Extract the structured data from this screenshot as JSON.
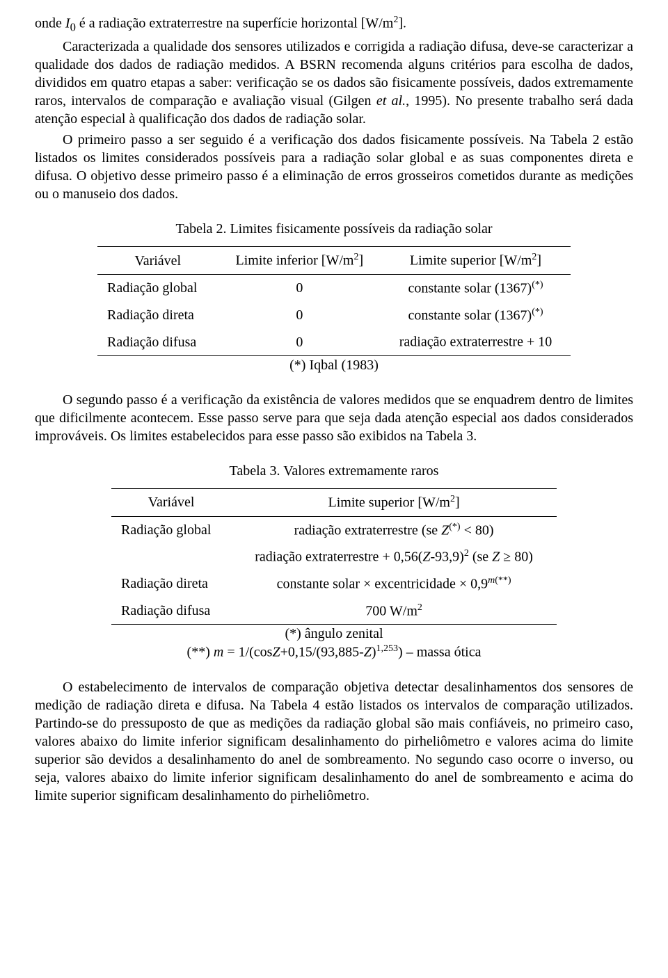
{
  "para1_prefix": "onde ",
  "para1_var": "I",
  "para1_sub": "0",
  "para1_rest": " é a radiação extraterrestre na superfície horizontal [W/m",
  "para1_sup": "2",
  "para1_end": "].",
  "para2_a": "Caracterizada a qualidade dos sensores utilizados e corrigida a radiação difusa, deve-se caracterizar a qualidade dos dados de radiação medidos. A BSRN recomenda alguns critérios para escolha de dados, divididos em quatro etapas a saber: verificação se os dados são fisicamente possíveis, dados extremamente raros, intervalos de comparação e avaliação visual (Gilgen ",
  "para2_it": "et al.",
  "para2_b": ", 1995). No presente trabalho será dada atenção especial à qualificação dos dados de radiação solar.",
  "para3": "O primeiro passo a ser seguido é a verificação dos dados fisicamente possíveis. Na Tabela 2 estão listados os limites considerados possíveis para a radiação solar global e as suas componentes direta e difusa. O objetivo desse primeiro passo é a eliminação de erros grosseiros cometidos durante as medições ou o manuseio dos dados.",
  "table2": {
    "caption": "Tabela 2. Limites fisicamente possíveis da radiação solar",
    "columns": {
      "c1": "Variável",
      "c2_a": "Limite inferior [W/m",
      "c2_sup": "2",
      "c2_b": "]",
      "c3_a": "Limite superior [W/m",
      "c3_sup": "2",
      "c3_b": "]"
    },
    "rows": [
      {
        "c1": "Radiação global",
        "c2": "0",
        "c3_a": "constante solar (1367)",
        "c3_sup": "(*)"
      },
      {
        "c1": "Radiação direta",
        "c2": "0",
        "c3_a": "constante solar (1367)",
        "c3_sup": "(*)"
      },
      {
        "c1": "Radiação difusa",
        "c2": "0",
        "c3_a": "radiação extraterrestre + 10",
        "c3_sup": ""
      }
    ],
    "footnote": "(*) Iqbal (1983)"
  },
  "para4": "O segundo passo é a verificação da existência de valores medidos que se enquadrem dentro de limites que dificilmente acontecem. Esse passo serve para que seja dada atenção especial aos dados considerados improváveis. Os limites estabelecidos para esse passo são exibidos na Tabela 3.",
  "table3": {
    "caption": "Tabela 3. Valores extremamente raros",
    "columns": {
      "c1": "Variável",
      "c2_a": "Limite superior [W/m",
      "c2_sup": "2",
      "c2_b": "]"
    },
    "r1c1": "Radiação global",
    "r1c2_a": "radiação extraterrestre (se ",
    "r1c2_itZ": "Z",
    "r1c2_sup": "(*)",
    "r1c2_b": " < 80)",
    "r1b_a": "radiação extraterrestre + 0,56(",
    "r1b_itZ": "Z",
    "r1b_mid": "-93,9)",
    "r1b_sup": "2",
    "r1b_b": " (se ",
    "r1b_itZ2": "Z",
    "r1b_c": " ≥ 80)",
    "r2c1": "Radiação direta",
    "r2c2_a": "constante solar × excentricidade × 0,9",
    "r2c2_supit": "m",
    "r2c2_supb": "(**)",
    "r3c1": "Radiação difusa",
    "r3c2_a": "700 W/m",
    "r3c2_sup": "2",
    "footnote1": "(*) ângulo zenital",
    "footnote2_a": "(**) ",
    "footnote2_it": "m",
    "footnote2_b": " = 1/(cos",
    "footnote2_itZ": "Z",
    "footnote2_c": "+0,15/(93,885-",
    "footnote2_itZ2": "Z",
    "footnote2_d": ")",
    "footnote2_sup": "1,253",
    "footnote2_e": ") – massa ótica"
  },
  "para5": "O estabelecimento de intervalos de comparação objetiva detectar desalinhamentos dos sensores de medição de radiação direta e difusa. Na Tabela 4 estão listados os intervalos de comparação utilizados. Partindo-se do pressuposto de que as medições da radiação global são mais confiáveis, no primeiro caso, valores abaixo do limite inferior significam desalinhamento do pirheliômetro e valores acima do limite superior são devidos a desalinhamento do anel de sombreamento. No segundo caso ocorre o inverso, ou seja, valores abaixo do limite inferior significam desalinhamento do anel de sombreamento e acima do limite superior significam desalinhamento do pirheliômetro."
}
